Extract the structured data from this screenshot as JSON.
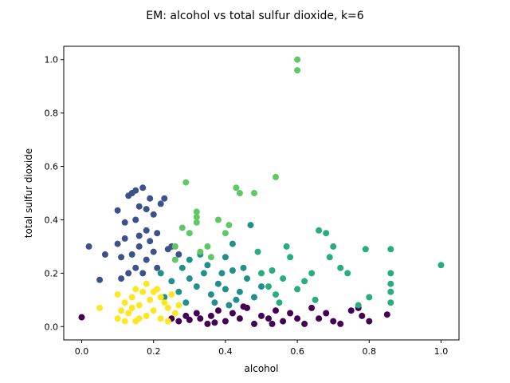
{
  "chart_data": {
    "type": "scatter",
    "title": "EM: alcohol vs total sulfur dioxide, k=6",
    "xlabel": "alcohol",
    "ylabel": "total sulfur dioxide",
    "xlim": [
      -0.05,
      1.05
    ],
    "ylim": [
      -0.05,
      1.05
    ],
    "xticks": [
      "0.0",
      "0.2",
      "0.4",
      "0.6",
      "0.8",
      "1.0"
    ],
    "yticks": [
      "0.0",
      "0.2",
      "0.4",
      "0.6",
      "0.8",
      "1.0"
    ],
    "grid": false,
    "legend": "none",
    "series": [
      {
        "color": "#440154",
        "points": [
          [
            0.0,
            0.035
          ],
          [
            0.25,
            0.03
          ],
          [
            0.27,
            0.02
          ],
          [
            0.29,
            0.04
          ],
          [
            0.3,
            0.025
          ],
          [
            0.32,
            0.05
          ],
          [
            0.33,
            0.03
          ],
          [
            0.35,
            0.01
          ],
          [
            0.36,
            0.04
          ],
          [
            0.38,
            0.06
          ],
          [
            0.4,
            0.02
          ],
          [
            0.42,
            0.05
          ],
          [
            0.44,
            0.03
          ],
          [
            0.46,
            0.07
          ],
          [
            0.48,
            0.01
          ],
          [
            0.5,
            0.04
          ],
          [
            0.52,
            0.03
          ],
          [
            0.54,
            0.06
          ],
          [
            0.56,
            0.02
          ],
          [
            0.58,
            0.05
          ],
          [
            0.6,
            0.03
          ],
          [
            0.62,
            0.01
          ],
          [
            0.64,
            0.07
          ],
          [
            0.66,
            0.03
          ],
          [
            0.68,
            0.05
          ],
          [
            0.7,
            0.02
          ],
          [
            0.72,
            0.01
          ],
          [
            0.75,
            0.06
          ],
          [
            0.77,
            0.07
          ],
          [
            0.78,
            0.04
          ],
          [
            0.8,
            0.02
          ],
          [
            0.85,
            0.045
          ],
          [
            0.45,
            0.075
          ],
          [
            0.37,
            0.015
          ],
          [
            0.53,
            0.01
          ]
        ]
      },
      {
        "color": "#3b528b",
        "points": [
          [
            0.02,
            0.3
          ],
          [
            0.05,
            0.175
          ],
          [
            0.065,
            0.27
          ],
          [
            0.1,
            0.435
          ],
          [
            0.12,
            0.39
          ],
          [
            0.13,
            0.49
          ],
          [
            0.14,
            0.5
          ],
          [
            0.15,
            0.51
          ],
          [
            0.16,
            0.45
          ],
          [
            0.17,
            0.52
          ],
          [
            0.18,
            0.44
          ],
          [
            0.19,
            0.48
          ],
          [
            0.2,
            0.42
          ],
          [
            0.21,
            0.35
          ],
          [
            0.22,
            0.46
          ],
          [
            0.23,
            0.48
          ],
          [
            0.12,
            0.33
          ],
          [
            0.14,
            0.27
          ],
          [
            0.15,
            0.22
          ],
          [
            0.16,
            0.3
          ],
          [
            0.17,
            0.2
          ],
          [
            0.18,
            0.25
          ],
          [
            0.19,
            0.32
          ],
          [
            0.2,
            0.28
          ],
          [
            0.21,
            0.22
          ],
          [
            0.13,
            0.2
          ],
          [
            0.1,
            0.31
          ],
          [
            0.11,
            0.26
          ],
          [
            0.24,
            0.29
          ],
          [
            0.25,
            0.3
          ],
          [
            0.27,
            0.27
          ],
          [
            0.15,
            0.4
          ],
          [
            0.18,
            0.36
          ],
          [
            0.11,
            0.18
          ],
          [
            0.16,
            0.34
          ]
        ]
      },
      {
        "color": "#21908d",
        "points": [
          [
            0.22,
            0.2
          ],
          [
            0.25,
            0.17
          ],
          [
            0.28,
            0.22
          ],
          [
            0.3,
            0.18
          ],
          [
            0.32,
            0.15
          ],
          [
            0.34,
            0.2
          ],
          [
            0.36,
            0.12
          ],
          [
            0.38,
            0.16
          ],
          [
            0.4,
            0.14
          ],
          [
            0.42,
            0.21
          ],
          [
            0.44,
            0.13
          ],
          [
            0.46,
            0.18
          ],
          [
            0.48,
            0.11
          ],
          [
            0.5,
            0.15
          ],
          [
            0.3,
            0.25
          ],
          [
            0.35,
            0.23
          ],
          [
            0.4,
            0.26
          ],
          [
            0.45,
            0.22
          ],
          [
            0.47,
            0.38
          ],
          [
            0.42,
            0.31
          ],
          [
            0.33,
            0.27
          ],
          [
            0.27,
            0.13
          ],
          [
            0.37,
            0.09
          ],
          [
            0.43,
            0.1
          ],
          [
            0.23,
            0.11
          ],
          [
            0.29,
            0.09
          ],
          [
            0.39,
            0.2
          ],
          [
            0.41,
            0.08
          ]
        ]
      },
      {
        "color": "#27ad81",
        "points": [
          [
            0.52,
            0.15
          ],
          [
            0.54,
            0.12
          ],
          [
            0.56,
            0.18
          ],
          [
            0.58,
            0.26
          ],
          [
            0.6,
            0.14
          ],
          [
            0.62,
            0.17
          ],
          [
            0.64,
            0.2
          ],
          [
            0.66,
            0.36
          ],
          [
            0.68,
            0.35
          ],
          [
            0.7,
            0.3
          ],
          [
            0.72,
            0.22
          ],
          [
            0.79,
            0.29
          ],
          [
            0.86,
            0.29
          ],
          [
            1.0,
            0.23
          ],
          [
            0.86,
            0.2
          ],
          [
            0.86,
            0.16
          ],
          [
            0.86,
            0.13
          ],
          [
            0.86,
            0.09
          ],
          [
            0.77,
            0.08
          ],
          [
            0.8,
            0.11
          ],
          [
            0.55,
            0.09
          ],
          [
            0.5,
            0.2
          ],
          [
            0.57,
            0.3
          ],
          [
            0.65,
            0.1
          ],
          [
            0.49,
            0.28
          ],
          [
            0.53,
            0.21
          ],
          [
            0.69,
            0.26
          ],
          [
            0.74,
            0.2
          ]
        ]
      },
      {
        "color": "#5ec962",
        "points": [
          [
            0.6,
            1.0
          ],
          [
            0.6,
            0.96
          ],
          [
            0.54,
            0.56
          ],
          [
            0.29,
            0.54
          ],
          [
            0.43,
            0.52
          ],
          [
            0.44,
            0.5
          ],
          [
            0.48,
            0.5
          ],
          [
            0.32,
            0.43
          ],
          [
            0.32,
            0.41
          ],
          [
            0.32,
            0.39
          ],
          [
            0.38,
            0.4
          ],
          [
            0.41,
            0.38
          ],
          [
            0.28,
            0.37
          ],
          [
            0.4,
            0.35
          ],
          [
            0.26,
            0.3
          ],
          [
            0.35,
            0.3
          ],
          [
            0.33,
            0.28
          ],
          [
            0.36,
            0.26
          ],
          [
            0.26,
            0.25
          ],
          [
            0.3,
            0.35
          ]
        ]
      },
      {
        "color": "#fde725",
        "points": [
          [
            0.05,
            0.07
          ],
          [
            0.1,
            0.12
          ],
          [
            0.1,
            0.03
          ],
          [
            0.12,
            0.09
          ],
          [
            0.13,
            0.05
          ],
          [
            0.14,
            0.11
          ],
          [
            0.15,
            0.02
          ],
          [
            0.16,
            0.08
          ],
          [
            0.17,
            0.13
          ],
          [
            0.18,
            0.04
          ],
          [
            0.19,
            0.1
          ],
          [
            0.2,
            0.06
          ],
          [
            0.21,
            0.14
          ],
          [
            0.22,
            0.03
          ],
          [
            0.23,
            0.09
          ],
          [
            0.24,
            0.07
          ],
          [
            0.25,
            0.12
          ],
          [
            0.26,
            0.05
          ],
          [
            0.11,
            0.06
          ],
          [
            0.15,
            0.14
          ],
          [
            0.2,
            0.13
          ],
          [
            0.18,
            0.16
          ],
          [
            0.22,
            0.11
          ],
          [
            0.12,
            0.02
          ],
          [
            0.27,
            0.08
          ],
          [
            0.24,
            0.02
          ],
          [
            0.16,
            0.03
          ],
          [
            0.14,
            0.07
          ]
        ]
      }
    ]
  }
}
